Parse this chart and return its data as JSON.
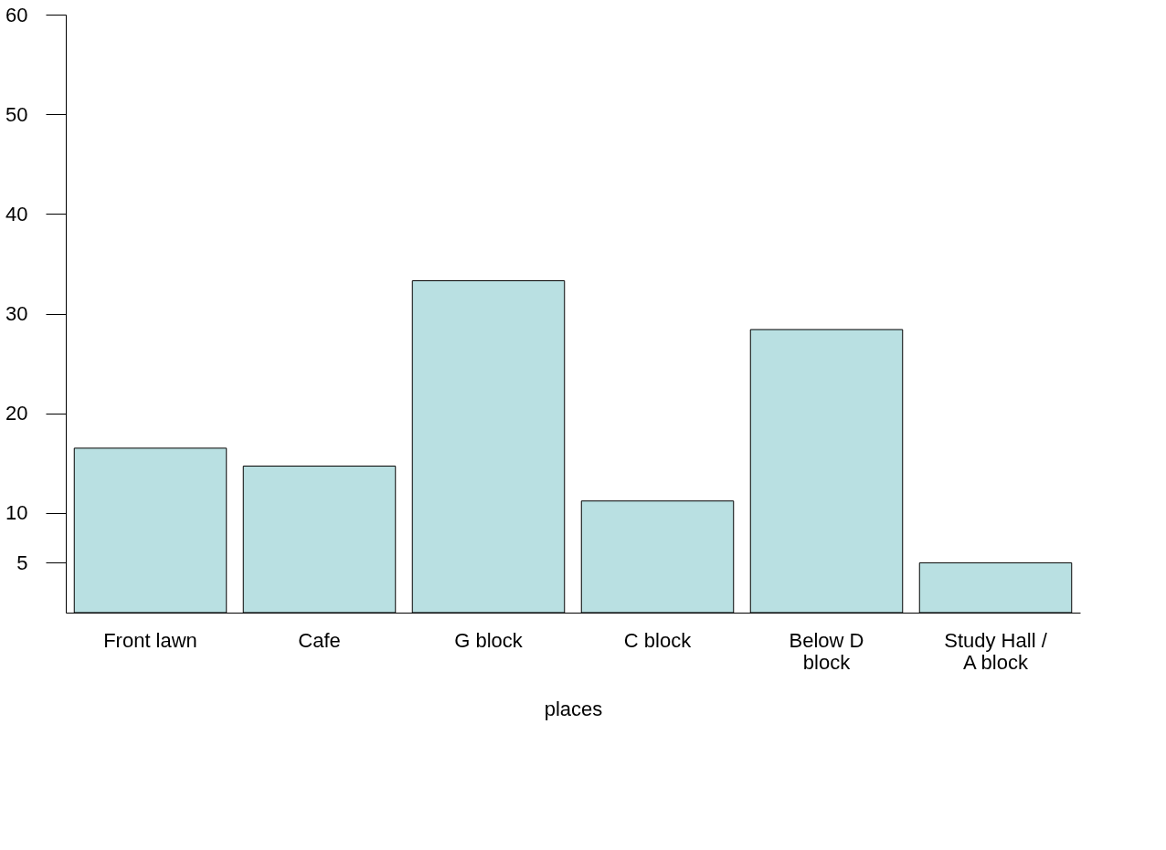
{
  "chart_data": {
    "type": "bar",
    "xlabel": "places",
    "categories": [
      "Front lawn",
      "Cafe",
      "G block",
      "C block",
      "Below D block",
      "Study Hall / A block"
    ],
    "values": [
      16.5,
      14.7,
      33.3,
      11.2,
      28.4,
      5
    ],
    "color": "#b9e0e2",
    "ylim": [
      0,
      60
    ],
    "yticks": [
      5,
      10,
      20,
      30,
      40,
      50,
      60
    ],
    "grid": false
  }
}
